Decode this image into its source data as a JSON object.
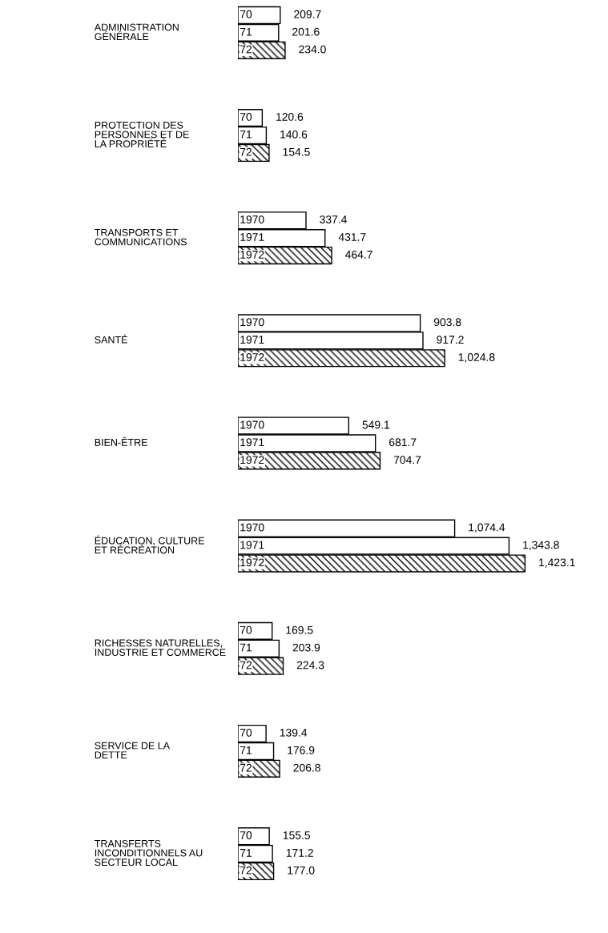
{
  "chart_data": {
    "type": "bar",
    "orientation": "horizontal",
    "categories": [
      "ADMINISTRATION\nGÉNÉRALE",
      "PROTECTION DES\nPERSONNES ET DE\nLA PROPRIÉTÉ",
      "TRANSPORTS ET\nCOMMUNICATIONS",
      "SANTÉ",
      "BIEN-ÊTRE",
      "ÉDUCATION, CULTURE\nET RÉCRÉATION",
      "RICHESSES NATURELLES,\nINDUSTRIE ET COMMERCE",
      "SERVICE DE LA\nDETTE",
      "TRANSFERTS\nINCONDITIONNELS AU\nSECTEUR LOCAL"
    ],
    "series": [
      {
        "color": "#ffffff",
        "values": [
          209.7,
          120.6,
          337.4,
          903.8,
          549.1,
          1074.4,
          169.5,
          139.4,
          155.5
        ],
        "value_labels": [
          "209.7",
          "120.6",
          "337.4",
          "903.8",
          "549.1",
          "1,074.4",
          "169.5",
          "139.4",
          "155.5"
        ]
      },
      {
        "color": "#ffffff",
        "values": [
          201.6,
          140.6,
          431.7,
          917.2,
          681.7,
          1343.8,
          203.9,
          176.9,
          171.2
        ],
        "value_labels": [
          "201.6",
          "140.6",
          "431.7",
          "917.2",
          "681.7",
          "1,343.8",
          "203.9",
          "176.9",
          "171.2"
        ]
      },
      {
        "color": "#000000",
        "values": [
          234.0,
          154.5,
          464.7,
          1024.8,
          704.7,
          1423.1,
          224.3,
          206.8,
          177.0
        ],
        "value_labels": [
          "234.0",
          "154.5",
          "464.7",
          "1,024.8",
          "704.7",
          "1,423.1",
          "224.3",
          "206.8",
          "177.0"
        ]
      }
    ],
    "annotations": [
      "70",
      "71",
      "72",
      "70",
      "71",
      "72",
      "1970",
      "1971",
      "1972",
      "1970",
      "1971",
      "1972",
      "1970",
      "1971",
      "1972",
      "1970",
      "1971",
      "1972",
      "70",
      "71",
      "72",
      "70",
      "71",
      "72",
      "70",
      "71",
      "72"
    ]
  }
}
